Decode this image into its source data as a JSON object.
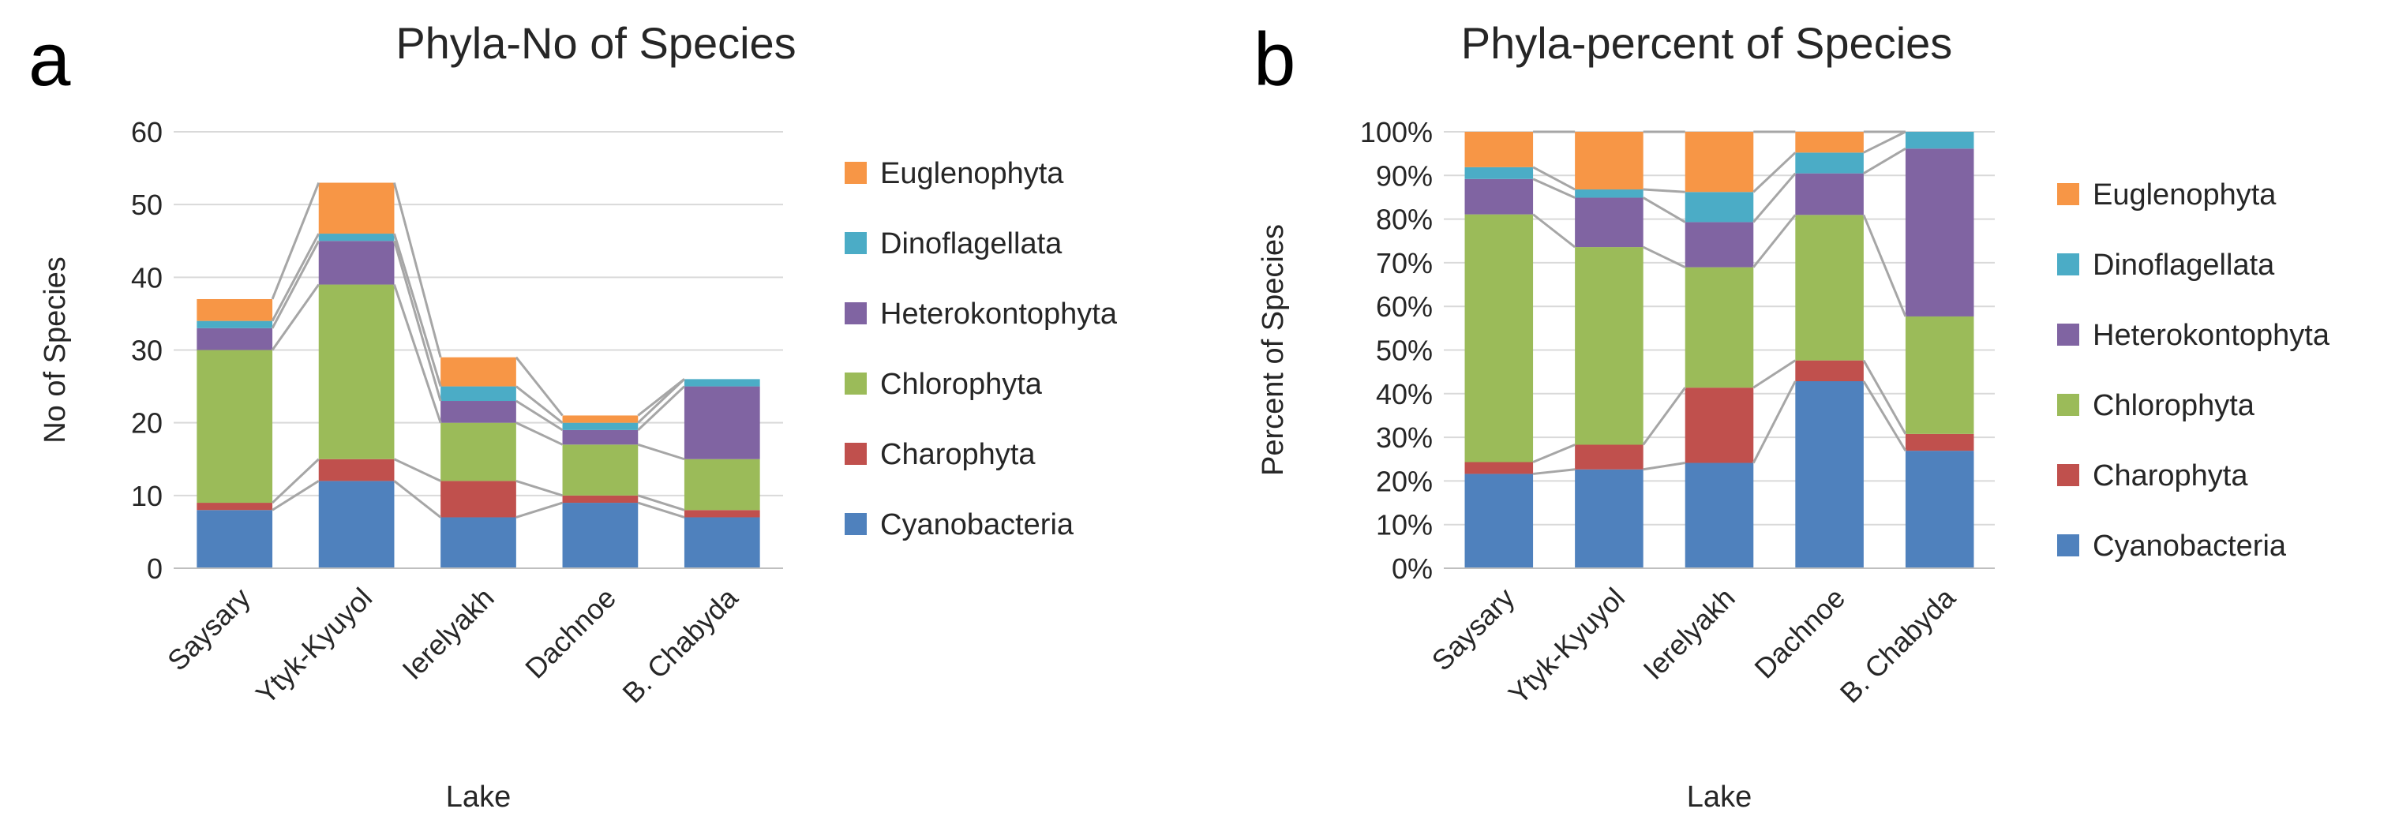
{
  "panels": [
    {
      "letter": "a",
      "title": "Phyla-No of Species"
    },
    {
      "letter": "b",
      "title": "Phyla-percent of Species"
    }
  ],
  "chart_data": [
    {
      "type": "bar",
      "stacked": true,
      "title": "Phyla-No of Species",
      "xlabel": "Lake",
      "ylabel": "No of Species",
      "ylim": [
        0,
        60
      ],
      "yticks": [
        "0",
        "10",
        "20",
        "30",
        "40",
        "50",
        "60"
      ],
      "grid": true,
      "legend": "right",
      "categories": [
        "Saysary",
        "Ytyk-Kyuyol",
        "Ierelyakh",
        "Dachnoe",
        "B. Chabyda"
      ],
      "series": [
        {
          "name": "Cyanobacteria",
          "color": "#4f81bd",
          "values": [
            8,
            12,
            7,
            9,
            7
          ]
        },
        {
          "name": "Charophyta",
          "color": "#c0504d",
          "values": [
            1,
            3,
            5,
            1,
            1
          ]
        },
        {
          "name": "Chlorophyta",
          "color": "#9bbb59",
          "values": [
            21,
            24,
            8,
            7,
            7
          ]
        },
        {
          "name": "Heterokontophyta",
          "color": "#8064a2",
          "values": [
            3,
            6,
            3,
            2,
            10
          ]
        },
        {
          "name": "Dinoflagellata",
          "color": "#4bacc6",
          "values": [
            1,
            1,
            2,
            1,
            1
          ]
        },
        {
          "name": "Euglenophyta",
          "color": "#f79646",
          "values": [
            3,
            7,
            4,
            1,
            0
          ]
        }
      ]
    },
    {
      "type": "bar",
      "stacked": true,
      "percent": true,
      "title": "Phyla-percent of Species",
      "xlabel": "Lake",
      "ylabel": "Percent of Species",
      "ylim": [
        0,
        100
      ],
      "yticks": [
        "0%",
        "10%",
        "20%",
        "30%",
        "40%",
        "50%",
        "60%",
        "70%",
        "80%",
        "90%",
        "100%"
      ],
      "grid": true,
      "legend": "right",
      "categories": [
        "Saysary",
        "Ytyk-Kyuyol",
        "Ierelyakh",
        "Dachnoe",
        "B. Chabyda"
      ],
      "series": [
        {
          "name": "Cyanobacteria",
          "color": "#4f81bd",
          "values": [
            8,
            12,
            7,
            9,
            7
          ]
        },
        {
          "name": "Charophyta",
          "color": "#c0504d",
          "values": [
            1,
            3,
            5,
            1,
            1
          ]
        },
        {
          "name": "Chlorophyta",
          "color": "#9bbb59",
          "values": [
            21,
            24,
            8,
            7,
            7
          ]
        },
        {
          "name": "Heterokontophyta",
          "color": "#8064a2",
          "values": [
            3,
            6,
            3,
            2,
            10
          ]
        },
        {
          "name": "Dinoflagellata",
          "color": "#4bacc6",
          "values": [
            1,
            1,
            2,
            1,
            1
          ]
        },
        {
          "name": "Euglenophyta",
          "color": "#f79646",
          "values": [
            3,
            7,
            4,
            1,
            0
          ]
        }
      ]
    }
  ]
}
